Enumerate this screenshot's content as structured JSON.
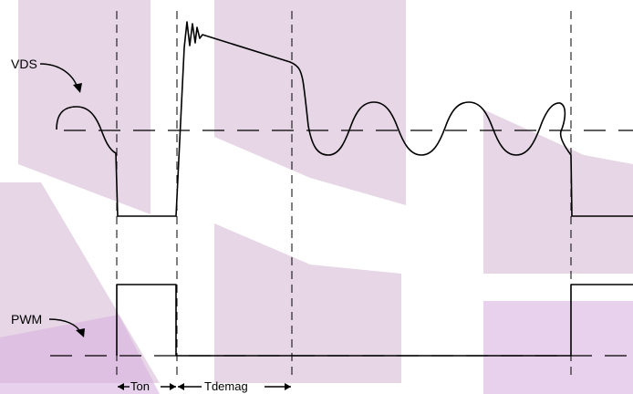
{
  "signals": {
    "vds": "VDS",
    "pwm": "PWM"
  },
  "intervals": {
    "ton": "Ton",
    "tdemag": "Tdemag"
  },
  "colors": {
    "watermark": "#c8a4c8",
    "watermark_light": "#d9b3e0",
    "line": "#000000"
  }
}
